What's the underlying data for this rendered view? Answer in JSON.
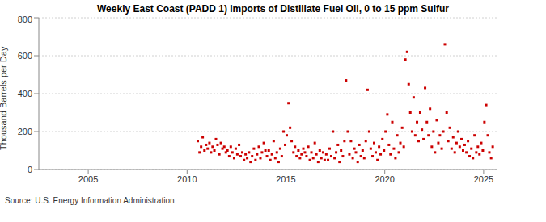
{
  "chart_data": {
    "type": "scatter",
    "title": "Weekly East Coast (PADD 1) Imports of Distillate Fuel Oil, 0 to 15 ppm Sulfur",
    "y_label": "Thousand Barrels per Day",
    "source": "Source: U.S. Energy Information Administration",
    "color": "#cc0000",
    "marker": "square",
    "grid": true,
    "xlim": [
      2002.5,
      2025.7
    ],
    "xticks": [
      2005,
      2010,
      2015,
      2020,
      2025
    ],
    "ylim": [
      0,
      800
    ],
    "yticks": [
      0,
      200,
      400,
      600,
      800
    ],
    "x": [
      2010.54,
      2010.63,
      2010.71,
      2010.79,
      2010.88,
      2010.96,
      2011.04,
      2011.13,
      2011.21,
      2011.29,
      2011.38,
      2011.46,
      2011.54,
      2011.63,
      2011.71,
      2011.79,
      2011.88,
      2011.96,
      2012.04,
      2012.13,
      2012.21,
      2012.29,
      2012.38,
      2012.46,
      2012.54,
      2012.63,
      2012.71,
      2012.79,
      2012.88,
      2012.96,
      2013.04,
      2013.13,
      2013.21,
      2013.29,
      2013.38,
      2013.46,
      2013.54,
      2013.63,
      2013.71,
      2013.79,
      2013.88,
      2013.96,
      2014.04,
      2014.13,
      2014.21,
      2014.29,
      2014.38,
      2014.46,
      2014.54,
      2014.63,
      2014.71,
      2014.79,
      2014.88,
      2014.96,
      2015.04,
      2015.13,
      2015.21,
      2015.29,
      2015.38,
      2015.46,
      2015.54,
      2015.63,
      2015.71,
      2015.79,
      2015.88,
      2015.96,
      2016.04,
      2016.13,
      2016.21,
      2016.29,
      2016.38,
      2016.46,
      2016.54,
      2016.63,
      2016.71,
      2016.79,
      2016.88,
      2016.96,
      2017.04,
      2017.13,
      2017.21,
      2017.29,
      2017.38,
      2017.46,
      2017.54,
      2017.63,
      2017.71,
      2017.79,
      2017.88,
      2017.96,
      2018.04,
      2018.13,
      2018.21,
      2018.29,
      2018.38,
      2018.46,
      2018.54,
      2018.63,
      2018.71,
      2018.79,
      2018.88,
      2018.96,
      2019.04,
      2019.13,
      2019.21,
      2019.29,
      2019.38,
      2019.46,
      2019.54,
      2019.63,
      2019.71,
      2019.79,
      2019.88,
      2019.96,
      2020.04,
      2020.13,
      2020.21,
      2020.29,
      2020.38,
      2020.46,
      2020.54,
      2020.63,
      2020.71,
      2020.79,
      2020.88,
      2020.96,
      2021.04,
      2021.13,
      2021.21,
      2021.29,
      2021.38,
      2021.46,
      2021.54,
      2021.63,
      2021.71,
      2021.79,
      2021.88,
      2021.96,
      2022.04,
      2022.13,
      2022.21,
      2022.29,
      2022.38,
      2022.46,
      2022.54,
      2022.63,
      2022.71,
      2022.79,
      2022.88,
      2022.96,
      2023.04,
      2023.13,
      2023.21,
      2023.29,
      2023.38,
      2023.46,
      2023.54,
      2023.63,
      2023.71,
      2023.79,
      2023.88,
      2023.96,
      2024.04,
      2024.13,
      2024.21,
      2024.29,
      2024.38,
      2024.46,
      2024.54,
      2024.63,
      2024.71,
      2024.79,
      2024.88,
      2024.96,
      2025.04,
      2025.13,
      2025.21,
      2025.29,
      2025.38,
      2025.46
    ],
    "values": [
      150,
      90,
      120,
      170,
      100,
      130,
      110,
      140,
      90,
      120,
      100,
      160,
      130,
      80,
      140,
      110,
      120,
      90,
      100,
      70,
      120,
      90,
      60,
      110,
      80,
      130,
      70,
      90,
      50,
      80,
      60,
      90,
      40,
      70,
      110,
      50,
      80,
      120,
      60,
      90,
      140,
      100,
      70,
      100,
      50,
      80,
      150,
      60,
      90,
      40,
      110,
      70,
      200,
      130,
      180,
      350,
      220,
      150,
      90,
      120,
      70,
      100,
      60,
      80,
      110,
      90,
      70,
      120,
      50,
      90,
      60,
      140,
      80,
      40,
      100,
      60,
      90,
      50,
      80,
      50,
      110,
      70,
      200,
      60,
      90,
      130,
      40,
      100,
      70,
      150,
      470,
      200,
      80,
      150,
      60,
      110,
      90,
      40,
      130,
      70,
      100,
      60,
      150,
      420,
      200,
      110,
      70,
      140,
      90,
      50,
      120,
      80,
      160,
      100,
      200,
      290,
      130,
      80,
      250,
      110,
      60,
      180,
      90,
      140,
      220,
      120,
      580,
      620,
      450,
      300,
      200,
      380,
      180,
      250,
      150,
      300,
      210,
      160,
      430,
      250,
      180,
      320,
      120,
      200,
      90,
      260,
      140,
      180,
      110,
      200,
      660,
      300,
      150,
      220,
      110,
      170,
      90,
      140,
      200,
      120,
      160,
      100,
      130,
      90,
      150,
      70,
      110,
      60,
      180,
      90,
      120,
      80,
      140,
      100,
      250,
      340,
      180,
      90,
      60,
      120
    ]
  }
}
